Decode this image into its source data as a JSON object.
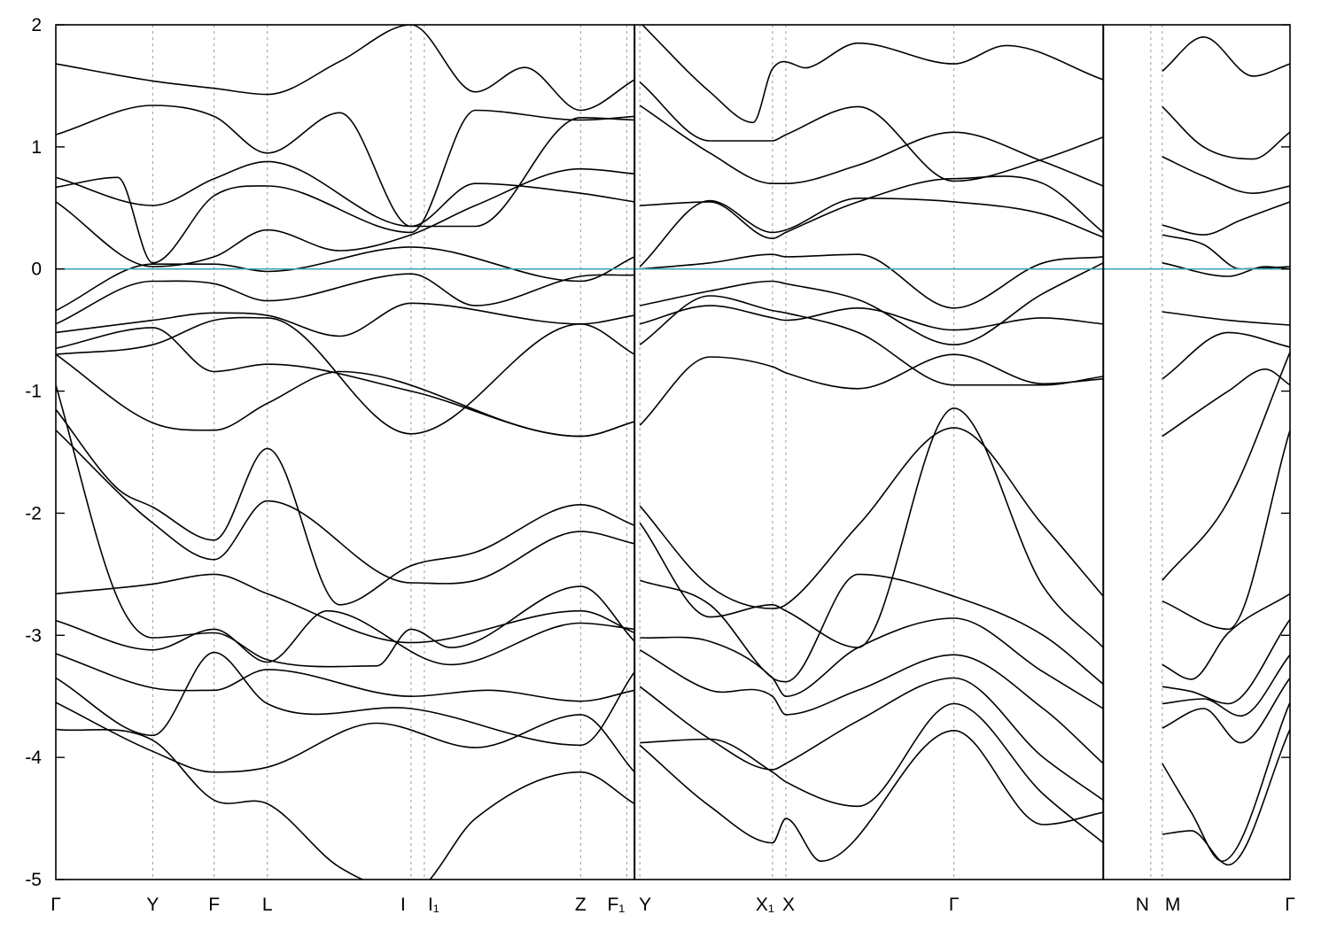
{
  "chart_data": {
    "type": "line",
    "title": "",
    "xlabel": "",
    "ylabel": "",
    "ylim": [
      -5,
      2
    ],
    "yticks": [
      -5,
      -4,
      -3,
      -2,
      -1,
      0,
      1,
      2
    ],
    "grid": "vertical dashed at high-symmetry points",
    "x_range": [
      0,
      1
    ],
    "kpoints": [
      {
        "label": "Γ",
        "x": 0.0
      },
      {
        "label": "Y",
        "x": 0.0785
      },
      {
        "label": "F",
        "x": 0.1283
      },
      {
        "label": "L",
        "x": 0.1714
      },
      {
        "label": "I",
        "x": 0.2878
      },
      {
        "label": "I₁",
        "x": 0.2986
      },
      {
        "label": "Z",
        "x": 0.4252
      },
      {
        "label": "F₁",
        "x": 0.4626
      },
      {
        "label": "Y",
        "x": 0.4732
      },
      {
        "label": "X₁",
        "x": 0.5807
      },
      {
        "label": "X",
        "x": 0.5915
      },
      {
        "label": "Γ",
        "x": 0.7277
      },
      {
        "label": "N",
        "x": 0.8872
      },
      {
        "label": "M",
        "x": 0.8965
      },
      {
        "label": "Γ",
        "x": 1.0
      }
    ],
    "segment_breaks": [
      0.4689,
      0.8487
    ],
    "fermi_level": 0,
    "fermi_color": "#3fa3b8",
    "band_color": "#000000",
    "series": [
      {
        "x": [
          0,
          0.0785,
          0.1283,
          0.1714,
          0.2878,
          0.34,
          0.4252,
          0.4689
        ],
        "y": [
          -1.32,
          -2.08,
          -2.38,
          -1.9,
          -2.57,
          -2.55,
          -2.15,
          -2.25
        ]
      },
      {
        "x": [
          0,
          0.0502,
          0.0785,
          0.1283,
          0.1714,
          0.23,
          0.2878,
          0.34,
          0.4252,
          0.4689
        ],
        "y": [
          -1.15,
          -1.8,
          -1.95,
          -2.22,
          -1.47,
          -2.75,
          -2.43,
          -2.32,
          -1.93,
          -2.1
        ]
      },
      {
        "x": [
          0,
          0.0785,
          0.1283,
          0.1714,
          0.2878,
          0.4252,
          0.4689
        ],
        "y": [
          -2.66,
          -2.58,
          -2.5,
          -2.66,
          -3.06,
          -2.8,
          -2.98
        ]
      },
      {
        "x": [
          0,
          0.0502,
          0.0785,
          0.1283,
          0.1714,
          0.26,
          0.2878,
          0.32,
          0.4252,
          0.4689
        ],
        "y": [
          -0.95,
          -2.7,
          -3.02,
          -2.98,
          -3.2,
          -3.25,
          -2.95,
          -3.1,
          -2.6,
          -3.05
        ]
      },
      {
        "x": [
          0,
          0.0785,
          0.1283,
          0.1714,
          0.22,
          0.32,
          0.4252,
          0.4689
        ],
        "y": [
          -2.88,
          -3.12,
          -2.95,
          -3.22,
          -2.8,
          -3.24,
          -2.9,
          -2.95
        ]
      },
      {
        "x": [
          0,
          0.0785,
          0.1283,
          0.1714,
          0.2878,
          0.35,
          0.4252,
          0.4689
        ],
        "y": [
          -3.15,
          -3.43,
          -3.45,
          -3.28,
          -3.5,
          -3.45,
          -3.54,
          -3.45
        ]
      },
      {
        "x": [
          0,
          0.0785,
          0.1283,
          0.1714,
          0.2878,
          0.4252,
          0.4689
        ],
        "y": [
          -3.35,
          -3.82,
          -3.14,
          -3.56,
          -3.6,
          -3.9,
          -3.3
        ]
      },
      {
        "x": [
          0,
          0.0785,
          0.1283,
          0.1714,
          0.26,
          0.34,
          0.4252,
          0.4689
        ],
        "y": [
          -3.55,
          -3.95,
          -4.12,
          -4.08,
          -3.72,
          -3.92,
          -3.65,
          -4.12
        ]
      },
      {
        "x": [
          0,
          0.0785,
          0.1283,
          0.1714,
          0.23,
          0.2878,
          0.34,
          0.4252,
          0.4689
        ],
        "y": [
          -3.77,
          -3.86,
          -4.35,
          -4.38,
          -4.9,
          -5.1,
          -4.5,
          -4.12,
          -4.38
        ]
      },
      {
        "x": [
          0,
          0.0785,
          0.1283,
          0.1714,
          0.23,
          0.4252,
          0.4689
        ],
        "y": [
          -0.7,
          -1.26,
          -1.32,
          -1.1,
          -0.84,
          -1.37,
          -1.25
        ]
      },
      {
        "x": [
          0,
          0.0785,
          0.1283,
          0.1714,
          0.2878,
          0.4252,
          0.4689
        ],
        "y": [
          -0.65,
          -0.48,
          -0.84,
          -0.78,
          -1.0,
          -1.37,
          -1.25
        ]
      },
      {
        "x": [
          0,
          0.0785,
          0.1283,
          0.1714,
          0.2878,
          0.4252,
          0.4689
        ],
        "y": [
          -0.7,
          -0.62,
          -0.42,
          -0.4,
          -1.35,
          -0.45,
          -0.7
        ]
      },
      {
        "x": [
          0,
          0.0785,
          0.1283,
          0.1714,
          0.23,
          0.2878,
          0.4252,
          0.4689
        ],
        "y": [
          -0.52,
          -0.42,
          -0.36,
          -0.38,
          -0.55,
          -0.28,
          -0.45,
          -0.38
        ]
      },
      {
        "x": [
          0,
          0.0785,
          0.1283,
          0.1714,
          0.2878,
          0.34,
          0.4252,
          0.4689
        ],
        "y": [
          -0.45,
          -0.1,
          -0.12,
          -0.26,
          -0.04,
          -0.3,
          -0.06,
          -0.05
        ]
      },
      {
        "x": [
          0,
          0.0785,
          0.1283,
          0.1714,
          0.2878,
          0.4252,
          0.4689
        ],
        "y": [
          -0.34,
          0.04,
          0.04,
          -0.02,
          0.18,
          -0.1,
          0.1
        ]
      },
      {
        "x": [
          0,
          0.0785,
          0.1283,
          0.1714,
          0.23,
          0.2878,
          0.34,
          0.4252,
          0.4689
        ],
        "y": [
          0.55,
          0.02,
          0.1,
          0.32,
          0.15,
          0.28,
          0.52,
          0.82,
          0.78
        ]
      },
      {
        "x": [
          0,
          0.0785,
          0.1283,
          0.1714,
          0.2878,
          0.34,
          0.4252,
          0.4689
        ],
        "y": [
          0.75,
          0.52,
          0.74,
          0.88,
          0.35,
          0.7,
          0.62,
          0.55
        ]
      },
      {
        "x": [
          0,
          0.0502,
          0.0785,
          0.1283,
          0.1714,
          0.2878,
          0.34,
          0.4252,
          0.4689
        ],
        "y": [
          0.67,
          0.75,
          0.05,
          0.6,
          0.68,
          0.3,
          1.3,
          1.22,
          1.25
        ]
      },
      {
        "x": [
          0,
          0.0785,
          0.1283,
          0.1714,
          0.23,
          0.2878,
          0.34,
          0.4252,
          0.4689
        ],
        "y": [
          1.1,
          1.34,
          1.25,
          0.95,
          1.28,
          0.35,
          0.35,
          1.24,
          1.22
        ]
      },
      {
        "x": [
          0,
          0.0785,
          0.1283,
          0.1714,
          0.23,
          0.2878,
          0.34,
          0.38,
          0.4252,
          0.4689
        ],
        "y": [
          1.68,
          1.54,
          1.48,
          1.43,
          1.7,
          2.0,
          1.45,
          1.65,
          1.3,
          1.55
        ]
      },
      {
        "x": [
          0.4732,
          0.53,
          0.5807,
          0.5915,
          0.65,
          0.7277,
          0.8,
          0.8487
        ],
        "y": [
          -1.94,
          -2.6,
          -2.78,
          -2.75,
          -2.1,
          -1.3,
          -2.1,
          -2.68
        ]
      },
      {
        "x": [
          0.4732,
          0.53,
          0.5807,
          0.5915,
          0.65,
          0.7277,
          0.8,
          0.8487
        ],
        "y": [
          -2.08,
          -2.85,
          -2.75,
          -2.8,
          -3.1,
          -1.14,
          -2.6,
          -3.1
        ]
      },
      {
        "x": [
          0.4732,
          0.53,
          0.5807,
          0.5915,
          0.65,
          0.7277,
          0.8,
          0.8487
        ],
        "y": [
          -2.55,
          -2.75,
          -3.35,
          -3.38,
          -2.5,
          -2.68,
          -3.0,
          -3.4
        ]
      },
      {
        "x": [
          0.4732,
          0.53,
          0.5807,
          0.5915,
          0.65,
          0.7277,
          0.8,
          0.8487
        ],
        "y": [
          -3.02,
          -3.05,
          -3.35,
          -3.5,
          -3.1,
          -2.86,
          -3.3,
          -3.6
        ]
      },
      {
        "x": [
          0.4732,
          0.53,
          0.5807,
          0.5915,
          0.65,
          0.7277,
          0.8,
          0.8487
        ],
        "y": [
          -3.12,
          -3.45,
          -3.5,
          -3.65,
          -3.45,
          -3.16,
          -3.6,
          -4.05
        ]
      },
      {
        "x": [
          0.4732,
          0.53,
          0.5807,
          0.5915,
          0.65,
          0.7277,
          0.8,
          0.8487
        ],
        "y": [
          -3.42,
          -3.85,
          -4.1,
          -4.05,
          -3.7,
          -3.35,
          -4.0,
          -4.35
        ]
      },
      {
        "x": [
          0.4732,
          0.53,
          0.5807,
          0.5915,
          0.65,
          0.7277,
          0.8,
          0.8487
        ],
        "y": [
          -3.88,
          -3.85,
          -4.12,
          -4.2,
          -4.4,
          -3.56,
          -4.3,
          -4.7
        ]
      },
      {
        "x": [
          0.4732,
          0.53,
          0.5807,
          0.5915,
          0.62,
          0.7277,
          0.8,
          0.8487
        ],
        "y": [
          -3.9,
          -4.4,
          -4.7,
          -4.5,
          -4.85,
          -3.78,
          -4.55,
          -4.45
        ]
      },
      {
        "x": [
          0.4732,
          0.53,
          0.5807,
          0.5915,
          0.65,
          0.7277,
          0.8,
          0.8487
        ],
        "y": [
          -1.28,
          -0.72,
          -0.8,
          -0.85,
          -0.98,
          -0.7,
          -0.94,
          -0.9
        ]
      },
      {
        "x": [
          0.4732,
          0.53,
          0.5807,
          0.5915,
          0.65,
          0.7277,
          0.8,
          0.8487
        ],
        "y": [
          -0.62,
          -0.22,
          -0.34,
          -0.36,
          -0.52,
          -0.95,
          -0.95,
          -0.88
        ]
      },
      {
        "x": [
          0.4732,
          0.53,
          0.5807,
          0.5915,
          0.65,
          0.7277,
          0.8,
          0.8487
        ],
        "y": [
          -0.45,
          -0.3,
          -0.4,
          -0.42,
          -0.32,
          -0.5,
          -0.4,
          -0.45
        ]
      },
      {
        "x": [
          0.4732,
          0.53,
          0.5807,
          0.5915,
          0.65,
          0.7277,
          0.8,
          0.8487
        ],
        "y": [
          -0.3,
          -0.18,
          -0.1,
          -0.12,
          -0.25,
          -0.62,
          -0.2,
          0.05
        ]
      },
      {
        "x": [
          0.4732,
          0.53,
          0.5807,
          0.5915,
          0.65,
          0.7277,
          0.8,
          0.8487
        ],
        "y": [
          0.0,
          0.05,
          0.12,
          0.1,
          0.12,
          -0.32,
          0.05,
          0.1
        ]
      },
      {
        "x": [
          0.4732,
          0.53,
          0.5807,
          0.5915,
          0.65,
          0.7277,
          0.8,
          0.8487
        ],
        "y": [
          0.02,
          0.56,
          0.3,
          0.32,
          0.58,
          0.55,
          0.45,
          0.26
        ]
      },
      {
        "x": [
          0.4732,
          0.53,
          0.5807,
          0.5915,
          0.65,
          0.7277,
          0.8,
          0.8487
        ],
        "y": [
          0.52,
          0.55,
          0.25,
          0.3,
          0.55,
          0.74,
          0.7,
          0.3
        ]
      },
      {
        "x": [
          0.4732,
          0.53,
          0.5807,
          0.5915,
          0.65,
          0.7277,
          0.8,
          0.8487
        ],
        "y": [
          1.34,
          0.95,
          0.7,
          0.7,
          0.85,
          1.12,
          0.88,
          0.68
        ]
      },
      {
        "x": [
          0.4732,
          0.53,
          0.5807,
          0.5915,
          0.65,
          0.7277,
          0.8,
          0.8487
        ],
        "y": [
          1.53,
          1.05,
          1.05,
          1.1,
          1.33,
          0.72,
          0.9,
          1.08
        ]
      },
      {
        "x": [
          0.4732,
          0.53,
          0.565,
          0.5807,
          0.61,
          0.65,
          0.7277,
          0.77,
          0.8487
        ],
        "y": [
          2.02,
          1.45,
          1.2,
          1.64,
          1.65,
          1.85,
          1.68,
          1.83,
          1.55
        ]
      },
      {
        "x": [
          0.8965,
          0.95,
          1.0
        ],
        "y": [
          -2.55,
          -1.9,
          -0.68
        ]
      },
      {
        "x": [
          0.8965,
          0.95,
          1.0
        ],
        "y": [
          -2.72,
          -2.95,
          -1.32
        ]
      },
      {
        "x": [
          0.8965,
          0.92,
          0.95,
          1.0
        ],
        "y": [
          -3.24,
          -3.36,
          -2.98,
          -2.66
        ]
      },
      {
        "x": [
          0.8965,
          0.92,
          0.95,
          1.0
        ],
        "y": [
          -3.42,
          -3.46,
          -3.56,
          -2.87
        ]
      },
      {
        "x": [
          0.8965,
          0.93,
          0.96,
          1.0
        ],
        "y": [
          -3.56,
          -3.52,
          -3.66,
          -3.16
        ]
      },
      {
        "x": [
          0.8965,
          0.93,
          0.96,
          1.0
        ],
        "y": [
          -3.76,
          -3.6,
          -3.88,
          -3.35
        ]
      },
      {
        "x": [
          0.8965,
          0.92,
          0.945,
          1.0
        ],
        "y": [
          -4.05,
          -4.45,
          -4.85,
          -3.55
        ]
      },
      {
        "x": [
          0.8965,
          0.92,
          0.95,
          1.0
        ],
        "y": [
          -4.63,
          -4.6,
          -4.88,
          -3.77
        ]
      },
      {
        "x": [
          0.8965,
          0.95,
          0.98,
          1.0
        ],
        "y": [
          -1.37,
          -1.0,
          -0.82,
          -0.95
        ]
      },
      {
        "x": [
          0.8965,
          0.95,
          1.0
        ],
        "y": [
          -0.9,
          -0.52,
          -0.64
        ]
      },
      {
        "x": [
          0.8965,
          0.95,
          1.0
        ],
        "y": [
          -0.35,
          -0.42,
          -0.46
        ]
      },
      {
        "x": [
          0.8965,
          0.95,
          0.98,
          1.0
        ],
        "y": [
          0.05,
          -0.06,
          0.02,
          0.0
        ]
      },
      {
        "x": [
          0.8965,
          0.93,
          0.96,
          1.0
        ],
        "y": [
          0.28,
          0.2,
          0.0,
          0.02
        ]
      },
      {
        "x": [
          0.8965,
          0.93,
          0.96,
          1.0
        ],
        "y": [
          0.36,
          0.28,
          0.4,
          0.55
        ]
      },
      {
        "x": [
          0.8965,
          0.93,
          0.97,
          1.0
        ],
        "y": [
          0.92,
          0.76,
          0.62,
          0.68
        ]
      },
      {
        "x": [
          0.8965,
          0.93,
          0.97,
          1.0
        ],
        "y": [
          1.33,
          1.0,
          0.9,
          1.12
        ]
      },
      {
        "x": [
          0.8965,
          0.93,
          0.97,
          1.0
        ],
        "y": [
          1.62,
          1.9,
          1.58,
          1.68
        ]
      }
    ]
  }
}
